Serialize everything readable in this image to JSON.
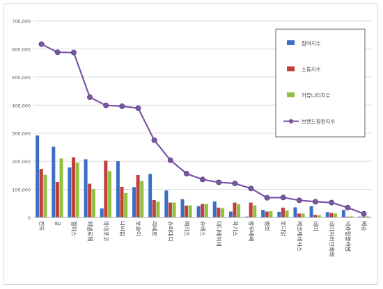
{
  "chart_data": {
    "type": "bar",
    "title": "",
    "xlabel": "",
    "ylabel": "",
    "ylim": [
      0,
      700000
    ],
    "yticks": [
      "0",
      "100,000",
      "200,000",
      "300,000",
      "400,000",
      "500,000",
      "600,000",
      "700,000"
    ],
    "ytick_values": [
      0,
      100000,
      200000,
      300000,
      400000,
      500000,
      600000,
      700000
    ],
    "grid": true,
    "legend_position": "top-right",
    "categories": [
      "킨도",
      "궁",
      "멜피스",
      "페넬로페",
      "마마포코",
      "나비잠",
      "보솜이",
      "리베로",
      "슈퍼대디",
      "메리즈",
      "슈베스",
      "대디베이비",
      "하기스",
      "밤부베베",
      "범보",
      "토디앙",
      "에코제네시스",
      "네띠",
      "네이처러브메레",
      "네츄럴블라썸",
      "베슈"
    ],
    "series": [
      {
        "name": "참여지수",
        "type": "bar",
        "color": "#3b6fc4",
        "values": [
          292000,
          252000,
          178000,
          207000,
          32000,
          200000,
          108000,
          155000,
          96000,
          65000,
          40000,
          57000,
          21000,
          3000,
          27000,
          20000,
          36000,
          40000,
          19000,
          27000,
          3000
        ]
      },
      {
        "name": "소통지수",
        "type": "bar",
        "color": "#c0403c",
        "values": [
          173000,
          126000,
          214000,
          120000,
          202000,
          109000,
          151000,
          62000,
          53000,
          42000,
          48000,
          35000,
          53000,
          53000,
          21000,
          35000,
          14000,
          9000,
          16000,
          3000,
          3000
        ]
      },
      {
        "name": "커뮤니티지수",
        "type": "bar",
        "color": "#92c040",
        "values": [
          152000,
          210000,
          195000,
          101000,
          165000,
          87000,
          130000,
          56000,
          53000,
          43000,
          48000,
          33000,
          47000,
          43000,
          22000,
          25000,
          14000,
          8000,
          14000,
          4000,
          4000
        ]
      },
      {
        "name": "브랜드평판지수",
        "type": "line",
        "color": "#7a55a3",
        "values": [
          617000,
          588000,
          587000,
          428000,
          399000,
          396000,
          389000,
          275000,
          204000,
          156000,
          135000,
          125000,
          121000,
          103000,
          70000,
          71000,
          61000,
          56000,
          53000,
          35000,
          13000
        ]
      }
    ]
  }
}
